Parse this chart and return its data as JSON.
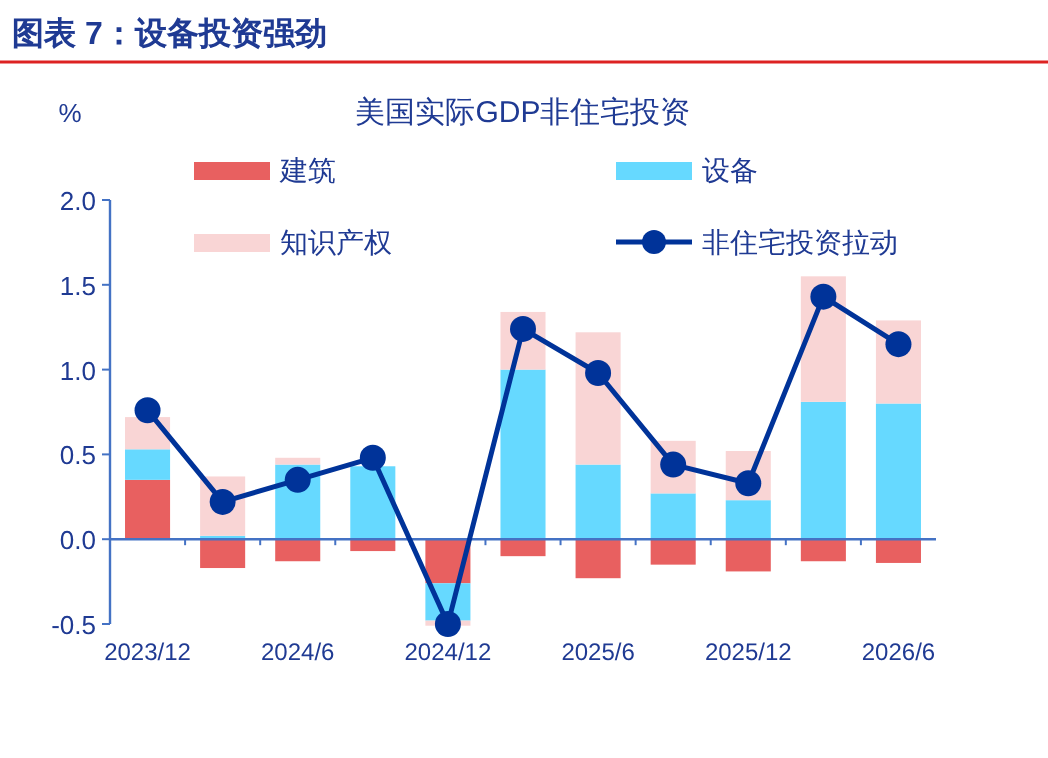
{
  "chart_data": {
    "type": "bar",
    "title": "图表 7：设备投资强劲",
    "subtitle": "美国实际GDP非住宅投资",
    "ylabel": "%",
    "categories": [
      "2023/12",
      null,
      "2024/6",
      null,
      "2024/12",
      null,
      "2025/6",
      null,
      "2025/12",
      null,
      "2026/6"
    ],
    "stacked": true,
    "ylim": [
      -0.5,
      2.0
    ],
    "yticks": [
      {
        "value": -0.5,
        "label": "-0.5"
      },
      {
        "value": 0,
        "label": "0.0"
      },
      {
        "value": 0.5,
        "label": "0.5"
      },
      {
        "value": 1,
        "label": "1.0"
      },
      {
        "value": 1.5,
        "label": "1.5"
      },
      {
        "value": 2,
        "label": "2.0"
      }
    ],
    "grid": false,
    "legend": "top",
    "ref_lines": [
      {
        "axis": "y",
        "value": 0,
        "color": "#4472c4"
      }
    ],
    "series": [
      {
        "name": "建筑",
        "color": "#e86060",
        "values": [
          0.35,
          -0.17,
          -0.13,
          -0.07,
          -0.26,
          -0.1,
          -0.23,
          -0.15,
          -0.19,
          -0.13,
          -0.14
        ]
      },
      {
        "name": "设备",
        "color": "#66d9ff",
        "values": [
          0.18,
          0.02,
          0.44,
          0.43,
          -0.22,
          1.0,
          0.44,
          0.27,
          0.23,
          0.81,
          0.8
        ]
      },
      {
        "name": "知识产权",
        "color": "#f9d5d5",
        "values": [
          0.19,
          0.35,
          0.04,
          0,
          -0.03,
          0.34,
          0.78,
          0.31,
          0.29,
          0.74,
          0.49
        ]
      },
      {
        "name": "非住宅投资拉动",
        "type": "line",
        "color": "#003399",
        "marker": "circle",
        "values": [
          0.76,
          0.22,
          0.35,
          0.48,
          -0.5,
          1.24,
          0.98,
          0.44,
          0.33,
          1.43,
          1.15
        ]
      }
    ]
  }
}
